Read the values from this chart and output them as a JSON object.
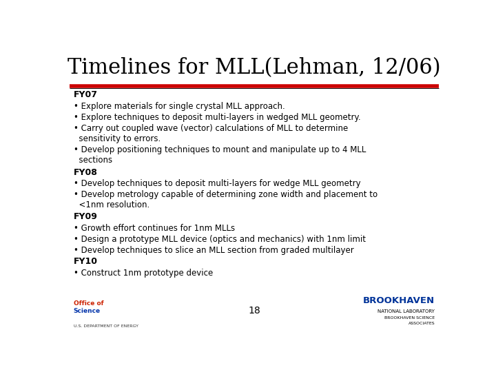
{
  "title": "Timelines for MLL(Lehman, 12/06)",
  "title_fontsize": 22,
  "title_font": "serif",
  "background_color": "#ffffff",
  "red_line_color": "#cc0000",
  "text_color": "#000000",
  "page_number": "18",
  "body_fontsize": 8.5,
  "heading_fontsize": 9.0,
  "sections": [
    {
      "heading": "FY07",
      "bullets": [
        "• Explore materials for single crystal MLL approach.",
        "• Explore techniques to deposit multi-layers in wedged MLL geometry.",
        "• Carry out coupled wave (vector) calculations of MLL to determine\n  sensitivity to errors.",
        "• Develop positioning techniques to mount and manipulate up to 4 MLL\n  sections"
      ]
    },
    {
      "heading": "FY08",
      "bullets": [
        "• Develop techniques to deposit multi-layers for wedge MLL geometry",
        "• Develop metrology capable of determining zone width and placement to\n  <1nm resolution."
      ]
    },
    {
      "heading": "FY09",
      "bullets": [
        "• Growth effort continues for 1nm MLLs",
        "• Design a prototype MLL device (optics and mechanics) with 1nm limit",
        "• Develop techniques to slice an MLL section from graded multilayer"
      ]
    },
    {
      "heading": "FY10",
      "bullets": [
        "• Construct 1nm prototype device"
      ]
    }
  ]
}
